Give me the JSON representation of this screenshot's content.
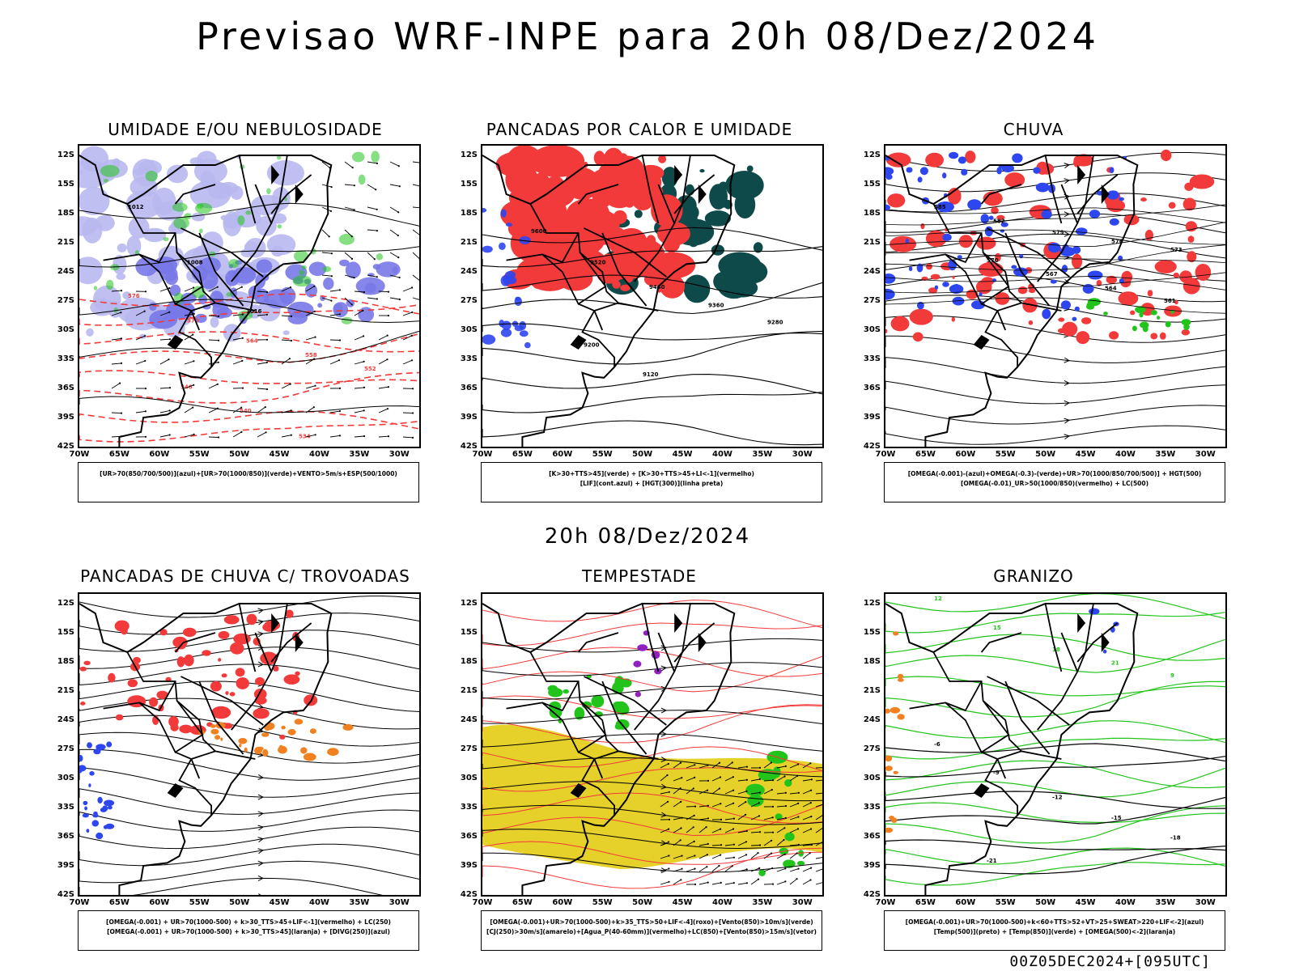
{
  "title": "Previsao WRF-INPE  para 20h 08/Dez/2024",
  "mid_title": "20h 08/Dez/2024",
  "footer": "00Z05DEC2024+[095UTC]",
  "lat_labels": [
    "12S",
    "15S",
    "18S",
    "21S",
    "24S",
    "27S",
    "30S",
    "33S",
    "36S",
    "39S",
    "42S"
  ],
  "lon_labels": [
    "70W",
    "65W",
    "60W",
    "55W",
    "50W",
    "45W",
    "40W",
    "35W",
    "30W"
  ],
  "panels": [
    {
      "title": "UMIDADE E/OU NEBULOSIDADE",
      "legend": [
        "[UR>70(850/700/500)](azul)+[UR>70(1000/850)](verde)+VENTO>5m/s+ESP(500/1000)"
      ]
    },
    {
      "title": "PANCADAS POR CALOR E UMIDADE",
      "legend": [
        "[K>30+TTS>45](verde) + [K>30+TTS>45+LI<-1](vermelho)",
        "[LIF](cont.azul) + [HGT(300)](linha preta)"
      ]
    },
    {
      "title": "CHUVA",
      "legend": [
        "[OMEGA(-0.001)-(azul)+OMEGA(-0.3)-(verde)+UR>70(1000/850/700/500)] + HGT(500)",
        "[OMEGA(-0.01)_UR>50(1000/850)(vermelho) + LC(500)"
      ]
    },
    {
      "title": "PANCADAS DE CHUVA C/ TROVOADAS",
      "legend": [
        "[OMEGA(-0.001) + UR>70(1000-500) + k>30_TTS>45+LIF<-1](vermelho) + LC(250)",
        "[OMEGA(-0.001) + UR>70(1000-500) + k>30_TTS>45](laranja) + [DIVG(250)](azul)"
      ]
    },
    {
      "title": "TEMPESTADE",
      "legend": [
        "[OMEGA(-0.001)+UR>70(1000-500)+k>35_TTS>50+LIF<-4](roxo)+[Vento(850)>10m/s](verde)",
        "[CJ(250)>30m/s](amarelo)+[Agua_P(40-60mm)](vermelho)+LC(850)+[Vento(850)>15m/s](vetor)"
      ]
    },
    {
      "title": "GRANIZO",
      "legend": [
        "[OMEGA(-0.001)+UR>70(1000-500)+k<60+TTS>52+VT>25+SWEAT>220+LIF<-2](azul)",
        "[Temp(500)](preto) + [Temp(850)](verde) + [OMEGA(500)<-2](laranja)"
      ]
    }
  ],
  "contour_labels": {
    "p1": [
      "1012",
      "1008",
      "1016",
      "576",
      "570",
      "564",
      "558",
      "552",
      "546",
      "540",
      "534"
    ],
    "p2": [
      "9600",
      "9520",
      "9440",
      "9360",
      "9280",
      "9200",
      "9120"
    ],
    "p3": [
      "585",
      "582",
      "579",
      "576",
      "573",
      "570",
      "567",
      "564",
      "561"
    ],
    "p6": [
      "-6",
      "-9",
      "-12",
      "-15",
      "-18",
      "-21",
      "12",
      "15",
      "18",
      "21",
      "9"
    ]
  },
  "colors": {
    "red": "#f23a3a",
    "blue": "#2e46f0",
    "green": "#22c41c",
    "lightblue": "#b8b8f0",
    "midblue": "#7878e8",
    "darkteal": "#0f4a4a",
    "yellow": "#e6d02a",
    "orange": "#f08020",
    "purple": "#9020c0"
  }
}
